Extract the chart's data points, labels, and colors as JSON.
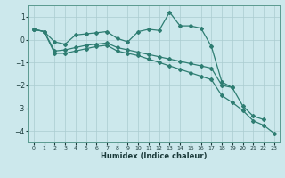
{
  "xlabel": "Humidex (Indice chaleur)",
  "bg_color": "#cce8ec",
  "grid_color": "#aaccd0",
  "line_color": "#2e7d72",
  "x_ticks": [
    0,
    1,
    2,
    3,
    4,
    5,
    6,
    7,
    8,
    9,
    10,
    11,
    12,
    13,
    14,
    15,
    16,
    17,
    18,
    19,
    20,
    21,
    22,
    23
  ],
  "y_ticks": [
    -4,
    -3,
    -2,
    -1,
    0,
    1
  ],
  "xlim": [
    -0.5,
    23.5
  ],
  "ylim": [
    -4.5,
    1.5
  ],
  "series": [
    {
      "x": [
        0,
        1,
        2,
        3,
        4,
        5,
        6,
        7,
        8,
        9,
        10,
        11,
        12,
        13,
        14,
        15,
        16,
        17,
        18,
        19
      ],
      "y": [
        0.45,
        0.35,
        -0.1,
        -0.2,
        0.2,
        0.25,
        0.3,
        0.35,
        0.05,
        -0.1,
        0.35,
        0.45,
        0.4,
        1.2,
        0.6,
        0.6,
        0.5,
        -0.3,
        -1.85,
        -2.1
      ]
    },
    {
      "x": [
        0,
        1,
        2,
        3,
        4,
        5,
        6,
        7,
        8,
        9,
        10,
        11,
        12,
        13,
        14,
        15,
        16,
        17,
        18,
        19,
        20,
        21,
        22
      ],
      "y": [
        0.45,
        0.35,
        -0.5,
        -0.45,
        -0.35,
        -0.25,
        -0.2,
        -0.15,
        -0.35,
        -0.45,
        -0.55,
        -0.65,
        -0.75,
        -0.85,
        -0.95,
        -1.05,
        -1.15,
        -1.25,
        -2.0,
        -2.1,
        -2.9,
        -3.35,
        -3.5
      ]
    },
    {
      "x": [
        0,
        1,
        2,
        3,
        4,
        5,
        6,
        7,
        8,
        9,
        10,
        11,
        12,
        13,
        14,
        15,
        16,
        17,
        18,
        19,
        20,
        21,
        22,
        23
      ],
      "y": [
        0.45,
        0.35,
        -0.6,
        -0.6,
        -0.5,
        -0.4,
        -0.3,
        -0.25,
        -0.5,
        -0.6,
        -0.7,
        -0.85,
        -1.0,
        -1.15,
        -1.3,
        -1.45,
        -1.6,
        -1.75,
        -2.45,
        -2.75,
        -3.1,
        -3.55,
        -3.75,
        -4.1
      ]
    }
  ]
}
